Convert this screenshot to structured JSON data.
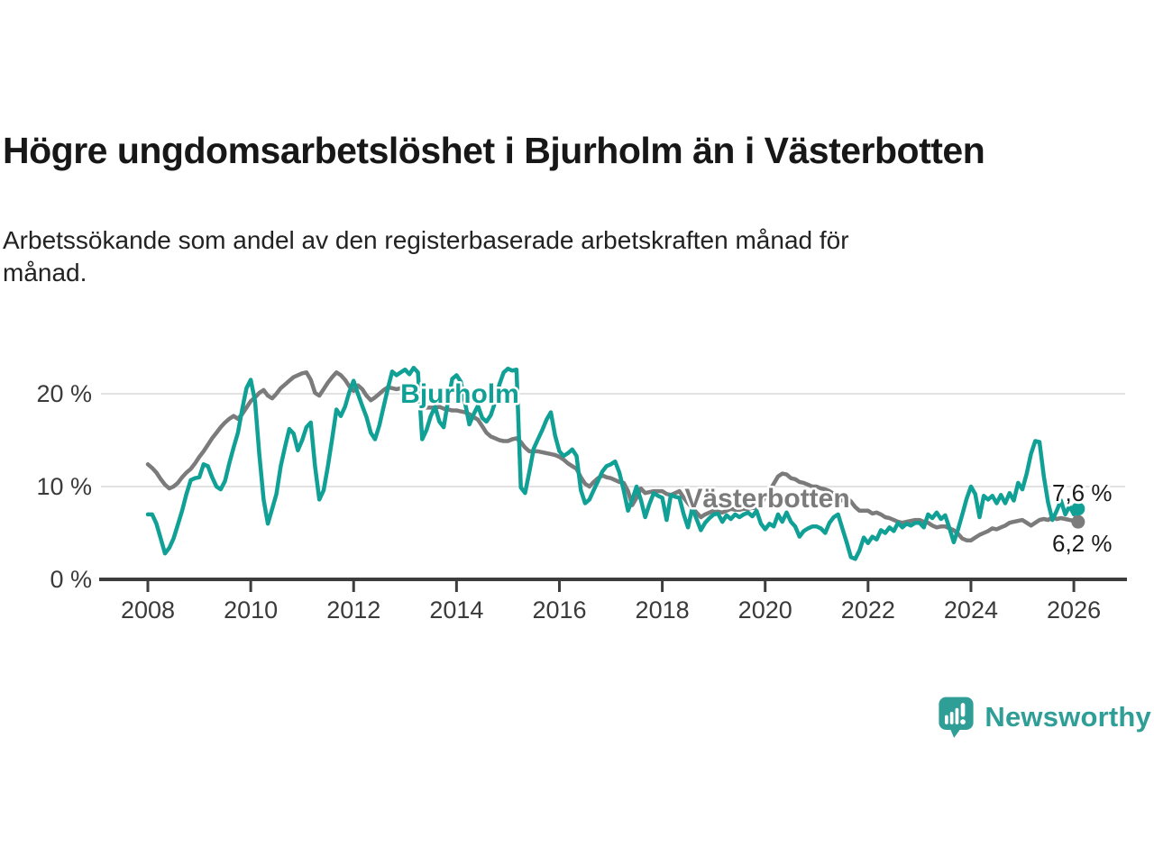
{
  "header": {
    "title": "Högre ungdomsarbetslöshet i Bjurholm än i Västerbotten",
    "subtitle": "Arbetssökande som andel av den registerbaserade arbetskraften månad för\nmånad."
  },
  "footer": {
    "brand": "Newsworthy",
    "brand_color": "#2e9e96"
  },
  "chart_data": {
    "type": "line",
    "title": "Högre ungdomsarbetslöshet i Bjurholm än i Västerbotten",
    "x_unit": "month",
    "start": "2008-01",
    "end": "2026-02",
    "ylim": [
      0,
      24
    ],
    "grid": "horizontal",
    "legend_position": "inline-labels",
    "x_ticks": [
      "2008",
      "2010",
      "2012",
      "2014",
      "2016",
      "2018",
      "2020",
      "2022",
      "2024",
      "2026"
    ],
    "y_ticks": [
      {
        "value": 0,
        "label": "0 %"
      },
      {
        "value": 10,
        "label": "10 %"
      },
      {
        "value": 20,
        "label": "20 %"
      }
    ],
    "series": [
      {
        "name": "Västerbotten",
        "color": "#7b7b7b",
        "end_label": "6,2 %",
        "values": [
          12.4,
          12.0,
          11.5,
          10.8,
          10.2,
          9.8,
          10.0,
          10.4,
          11.0,
          11.5,
          11.9,
          12.5,
          13.2,
          13.8,
          14.5,
          15.2,
          15.8,
          16.4,
          16.9,
          17.3,
          17.6,
          17.3,
          17.8,
          18.5,
          19.2,
          19.6,
          20.1,
          20.4,
          19.8,
          19.5,
          20.0,
          20.6,
          21.0,
          21.4,
          21.8,
          22.0,
          22.2,
          22.3,
          21.5,
          20.1,
          19.8,
          20.5,
          21.2,
          21.8,
          22.3,
          22.0,
          21.5,
          20.8,
          20.3,
          20.9,
          20.5,
          19.8,
          19.3,
          19.6,
          20.0,
          20.4,
          20.7,
          20.6,
          20.5,
          20.6,
          20.6,
          20.4,
          20.0,
          19.5,
          18.9,
          18.5,
          18.5,
          18.5,
          18.6,
          18.4,
          18.3,
          18.2,
          18.2,
          18.1,
          18.0,
          17.8,
          17.5,
          17.2,
          16.5,
          15.8,
          15.4,
          15.2,
          15.0,
          14.9,
          14.9,
          15.1,
          15.2,
          14.8,
          14.2,
          13.8,
          13.8,
          13.8,
          13.7,
          13.6,
          13.5,
          13.4,
          13.2,
          12.9,
          12.5,
          12.2,
          11.9,
          11.0,
          10.3,
          10.0,
          10.5,
          10.9,
          11.2,
          11.0,
          10.9,
          10.7,
          10.5,
          10.4,
          9.5,
          8.0,
          8.8,
          9.8,
          9.3,
          9.4,
          9.5,
          9.5,
          9.5,
          9.2,
          9.1,
          9.3,
          9.5,
          8.8,
          8.2,
          7.7,
          7.2,
          6.7,
          7.0,
          7.2,
          7.4,
          7.3,
          7.2,
          7.4,
          7.6,
          7.5,
          7.5,
          7.6,
          7.6,
          7.7,
          7.7,
          8.0,
          9.0,
          9.5,
          10.3,
          11.1,
          11.4,
          11.3,
          10.9,
          10.8,
          10.5,
          10.4,
          10.2,
          10.0,
          10.0,
          9.8,
          9.7,
          9.5,
          9.2,
          8.7,
          8.5,
          8.8,
          8.4,
          7.8,
          7.4,
          7.4,
          7.4,
          7.1,
          7.2,
          7.0,
          6.7,
          6.6,
          6.4,
          6.2,
          6.1,
          6.2,
          6.3,
          6.4,
          6.4,
          6.2,
          6.1,
          5.8,
          5.6,
          5.7,
          5.7,
          5.5,
          5.3,
          4.9,
          4.4,
          4.2,
          4.2,
          4.5,
          4.8,
          5.0,
          5.2,
          5.5,
          5.4,
          5.6,
          5.8,
          6.1,
          6.2,
          6.3,
          6.4,
          6.1,
          5.8,
          6.1,
          6.4,
          6.5,
          6.4,
          6.7,
          6.5,
          6.6,
          6.5,
          6.4,
          6.3,
          6.2
        ]
      },
      {
        "name": "Bjurholm",
        "color": "#10a096",
        "end_label": "7,6 %",
        "values": [
          7.0,
          7.0,
          6.0,
          4.4,
          2.8,
          3.4,
          4.4,
          5.9,
          7.4,
          9.2,
          10.7,
          10.9,
          11.0,
          12.4,
          12.2,
          11.0,
          10.0,
          9.7,
          10.6,
          12.5,
          14.2,
          15.8,
          18.3,
          20.6,
          21.5,
          19.2,
          13.5,
          8.6,
          6.0,
          7.6,
          9.2,
          12.2,
          14.3,
          16.2,
          15.7,
          13.9,
          15.0,
          16.4,
          16.9,
          12.2,
          8.6,
          9.6,
          12.2,
          15.2,
          18.3,
          17.6,
          18.6,
          20.2,
          21.4,
          20.0,
          18.7,
          17.5,
          15.8,
          15.1,
          16.6,
          18.6,
          20.6,
          22.4,
          22.0,
          22.3,
          22.6,
          22.1,
          22.8,
          22.3,
          15.1,
          16.1,
          17.6,
          18.6,
          17.0,
          16.4,
          19.1,
          21.6,
          22.0,
          21.3,
          19.0,
          16.7,
          17.8,
          18.7,
          17.4,
          17.0,
          17.7,
          19.1,
          21.0,
          22.3,
          22.7,
          22.5,
          22.6,
          9.9,
          9.3,
          11.6,
          14.1,
          15.1,
          16.1,
          17.2,
          18.0,
          15.5,
          13.8,
          13.3,
          13.6,
          14.0,
          13.3,
          9.6,
          8.2,
          8.6,
          9.6,
          10.6,
          11.6,
          12.2,
          12.4,
          12.7,
          11.5,
          9.6,
          7.4,
          8.6,
          10.0,
          8.6,
          6.7,
          8.1,
          9.3,
          9.0,
          8.8,
          6.4,
          9.1,
          8.9,
          8.8,
          7.0,
          5.6,
          7.7,
          6.5,
          5.3,
          6.1,
          6.6,
          7.0,
          7.1,
          6.2,
          6.9,
          6.5,
          7.0,
          6.7,
          7.0,
          7.2,
          6.8,
          7.4,
          6.0,
          5.4,
          6.0,
          5.7,
          7.0,
          6.2,
          7.2,
          6.2,
          5.7,
          4.6,
          5.2,
          5.5,
          5.7,
          5.7,
          5.5,
          5.0,
          6.1,
          6.7,
          7.0,
          5.5,
          4.0,
          2.4,
          2.2,
          3.1,
          4.5,
          3.9,
          4.6,
          4.3,
          5.3,
          5.0,
          5.6,
          5.2,
          6.1,
          5.6,
          6.0,
          5.8,
          6.1,
          6.1,
          5.6,
          7.0,
          6.6,
          7.2,
          6.5,
          6.9,
          5.5,
          4.0,
          5.4,
          7.0,
          8.7,
          10.0,
          9.2,
          6.7,
          9.0,
          8.6,
          9.0,
          8.2,
          9.1,
          8.2,
          9.3,
          8.5,
          10.4,
          9.7,
          11.4,
          13.5,
          14.9,
          14.8,
          11.1,
          8.3,
          6.4,
          7.4,
          8.5,
          7.0,
          7.9,
          7.0,
          7.6
        ]
      }
    ]
  }
}
